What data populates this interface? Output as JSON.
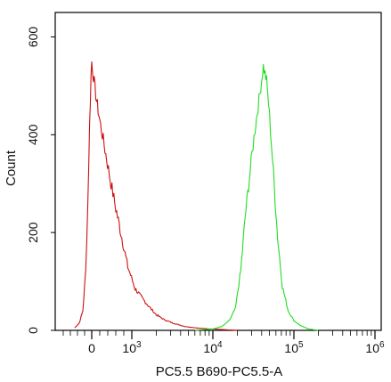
{
  "chart_data": {
    "type": "line",
    "title": "",
    "xlabel": "PC5.5 B690-PC5.5-A",
    "ylabel": "Count",
    "x_scale": "logicle",
    "xlim": [
      -1000,
      1000000
    ],
    "ylim": [
      0,
      650
    ],
    "y_ticks": [
      0,
      200,
      400,
      600
    ],
    "x_ticks": [
      {
        "value": 0,
        "base": "0",
        "exp": ""
      },
      {
        "value": 1000,
        "base": "10",
        "exp": "3"
      },
      {
        "value": 10000,
        "base": "10",
        "exp": "4"
      },
      {
        "value": 100000,
        "base": "10",
        "exp": "5"
      },
      {
        "value": 1000000,
        "base": "10",
        "exp": "6"
      }
    ],
    "grid": false,
    "series": [
      {
        "color": "#cc1111",
        "points": [
          [
            -480,
            5
          ],
          [
            -350,
            15
          ],
          [
            -250,
            40
          ],
          [
            -170,
            120
          ],
          [
            -110,
            260
          ],
          [
            -60,
            420
          ],
          [
            -20,
            520
          ],
          [
            0,
            550
          ],
          [
            40,
            520
          ],
          [
            120,
            470
          ],
          [
            220,
            420
          ],
          [
            330,
            370
          ],
          [
            480,
            300
          ],
          [
            600,
            250
          ],
          [
            750,
            190
          ],
          [
            900,
            130
          ],
          [
            1100,
            85
          ],
          [
            1400,
            62
          ],
          [
            1700,
            45
          ],
          [
            2000,
            32
          ],
          [
            2500,
            22
          ],
          [
            3200,
            15
          ],
          [
            4500,
            8
          ],
          [
            7000,
            4
          ],
          [
            12000,
            2
          ],
          [
            20000,
            0
          ]
        ]
      },
      {
        "color": "#22dd22",
        "points": [
          [
            6000,
            0
          ],
          [
            10000,
            3
          ],
          [
            13000,
            8
          ],
          [
            16000,
            20
          ],
          [
            19000,
            45
          ],
          [
            22000,
            120
          ],
          [
            25000,
            230
          ],
          [
            29000,
            330
          ],
          [
            33000,
            410
          ],
          [
            37000,
            470
          ],
          [
            42000,
            540
          ],
          [
            46000,
            510
          ],
          [
            50000,
            440
          ],
          [
            56000,
            320
          ],
          [
            63000,
            190
          ],
          [
            72000,
            90
          ],
          [
            85000,
            40
          ],
          [
            100000,
            20
          ],
          [
            120000,
            10
          ],
          [
            150000,
            3
          ],
          [
            200000,
            0
          ]
        ]
      }
    ]
  }
}
